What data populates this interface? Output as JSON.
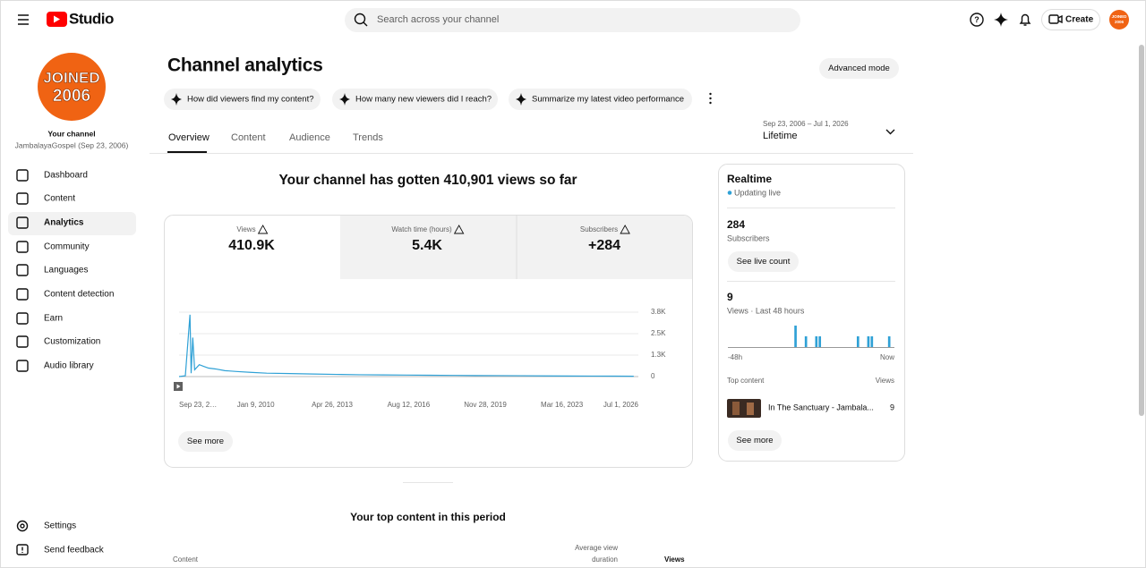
{
  "header": {
    "logo": "Studio",
    "search_placeholder": "Search across your channel",
    "create": "Create",
    "avatar_text": [
      "JOINED",
      "2006"
    ]
  },
  "sidebar": {
    "avatar_text": [
      "JOINED",
      "2006"
    ],
    "channel_label": "Your channel",
    "channel_name": "JambalayaGospel (Sep 23, 2006)",
    "nav": [
      "Dashboard",
      "Content",
      "Analytics",
      "Community",
      "Languages",
      "Content detection",
      "Earn",
      "Customization",
      "Audio library"
    ],
    "bottom": [
      "Settings",
      "Send feedback"
    ]
  },
  "page": {
    "title": "Channel analytics",
    "advanced_mode": "Advanced mode",
    "prompts": [
      "How did viewers find my content?",
      "How many new viewers did I reach?",
      "Summarize my latest video performance"
    ],
    "tabs": [
      "Overview",
      "Content",
      "Audience",
      "Trends"
    ],
    "date_range": "Sep 23, 2006 – Jul 1, 2026",
    "period": "Lifetime",
    "headline": "Your channel has gotten 410,901 views so far",
    "metrics": [
      {
        "label": "Views",
        "value": "410.9K"
      },
      {
        "label": "Watch time (hours)",
        "value": "5.4K"
      },
      {
        "label": "Subscribers",
        "value": "+284"
      }
    ],
    "see_more": "See more",
    "top_content_title": "Your top content in this period",
    "table_headers": [
      "Content",
      "Average view duration",
      "Views"
    ]
  },
  "realtime": {
    "title": "Realtime",
    "status": "Updating live",
    "subscribers": "284",
    "subscribers_label": "Subscribers",
    "see_live_count": "See live count",
    "views": "9",
    "views_label": "Views · Last 48 hours",
    "top_content_label": "Top content",
    "views_header": "Views",
    "top_item": {
      "title": "In The Sanctuary - Jambala...",
      "views": "9"
    },
    "see_more": "See more"
  },
  "chart_data": [
    {
      "type": "line",
      "color": "#2fa1d6",
      "x": [
        2006.73,
        2007.0,
        2007.2,
        2007.25,
        2007.32,
        2007.4,
        2007.6,
        2007.8,
        2008.0,
        2008.3,
        2008.7,
        2009.2,
        2009.8,
        2010.5,
        2011.5,
        2012.5,
        2013.5,
        2014.5,
        2015.5,
        2016.5,
        2017.5,
        2018.5,
        2019.5,
        2020.5,
        2021.5,
        2022.5,
        2023.5,
        2024.5,
        2025.5,
        2026.3
      ],
      "values": [
        0,
        50,
        3650,
        200,
        2300,
        400,
        700,
        600,
        500,
        450,
        350,
        300,
        250,
        200,
        180,
        150,
        130,
        110,
        100,
        90,
        80,
        70,
        60,
        55,
        50,
        40,
        35,
        30,
        25,
        20
      ],
      "xlim": [
        2006.73,
        2026.5
      ],
      "xticks": [
        {
          "value": 2006.73,
          "label": "Sep 23, 2…"
        },
        {
          "value": 2010.03,
          "label": "Jan 9, 2010"
        },
        {
          "value": 2013.32,
          "label": "Apr 26, 2013"
        },
        {
          "value": 2016.61,
          "label": "Aug 12, 2016"
        },
        {
          "value": 2019.91,
          "label": "Nov 28, 2019"
        },
        {
          "value": 2023.21,
          "label": "Mar 16, 2023"
        },
        {
          "value": 2026.5,
          "label": "Jul 1, 2026"
        }
      ],
      "ylim": [
        0,
        3800
      ],
      "yticks": [
        0,
        {
          "value": 1267,
          "label": "1.3K"
        },
        {
          "value": 2533,
          "label": "2.5K"
        },
        {
          "value": 3800,
          "label": "3.8K"
        }
      ],
      "grid": true
    },
    {
      "type": "bar",
      "color": "#2fa1d6",
      "values": [
        0,
        0,
        0,
        0,
        0,
        0,
        0,
        0,
        0,
        0,
        0,
        0,
        0,
        0,
        0,
        0,
        0,
        0,
        0,
        2,
        0,
        0,
        1,
        0,
        0,
        1,
        1,
        0,
        0,
        0,
        0,
        0,
        0,
        0,
        0,
        0,
        0,
        1,
        0,
        0,
        1,
        1,
        0,
        0,
        0,
        0,
        1,
        0
      ],
      "ylim": [
        0,
        2
      ],
      "xticks": [
        {
          "value": 0,
          "label": "-48h"
        },
        {
          "value": 47,
          "label": "Now"
        }
      ]
    }
  ]
}
